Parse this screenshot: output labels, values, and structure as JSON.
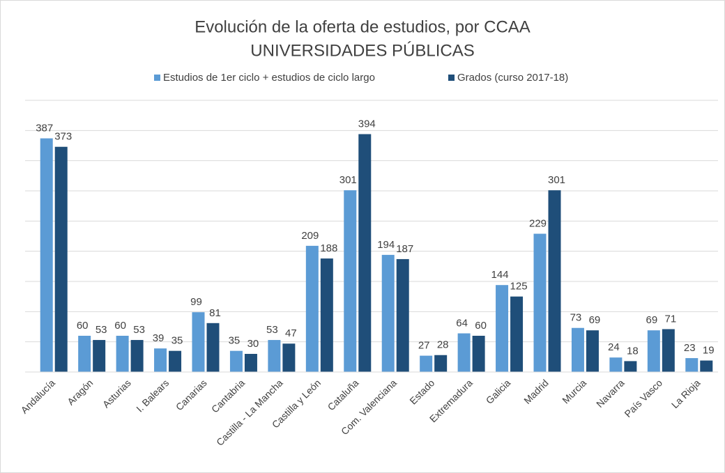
{
  "chart_data": {
    "type": "bar",
    "title": "Evolución de la oferta de estudios, por CCAA",
    "subtitle": "UNIVERSIDADES PÚBLICAS",
    "categories": [
      "Andalucía",
      "Aragón",
      "Asturias",
      "I. Balears",
      "Canarias",
      "Cantabria",
      "Castilla - La Mancha",
      "Castilla y León",
      "Cataluña",
      "Com. Valenciana",
      "Estado",
      "Extremadura",
      "Galicia",
      "Madrid",
      "Murcia",
      "Navarra",
      "País Vasco",
      "La Rioja"
    ],
    "series": [
      {
        "name": "Estudios de 1er ciclo + estudios de ciclo largo",
        "color": "#5b9bd5",
        "values": [
          387,
          60,
          60,
          39,
          99,
          35,
          53,
          209,
          301,
          194,
          27,
          64,
          144,
          229,
          73,
          24,
          69,
          23
        ]
      },
      {
        "name": "Grados (curso 2017-18)",
        "color": "#1f4e79",
        "values": [
          373,
          53,
          53,
          35,
          81,
          30,
          47,
          188,
          394,
          187,
          28,
          60,
          125,
          301,
          69,
          18,
          71,
          19
        ]
      }
    ],
    "ylim": [
      0,
      450
    ],
    "yticks": [
      0,
      50,
      100,
      150,
      200,
      250,
      300,
      350,
      400,
      450
    ],
    "grid": true,
    "legend": "top"
  }
}
